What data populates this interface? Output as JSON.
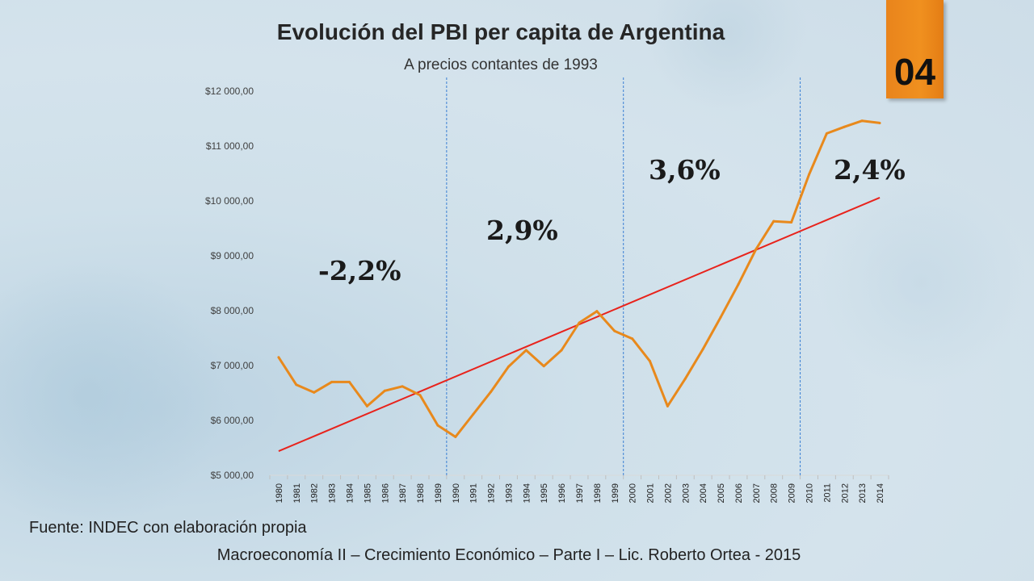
{
  "chart_data": {
    "type": "line",
    "title": "Evolución del PBI per capita de Argentina",
    "subtitle": "A precios contantes de 1993",
    "ylim": [
      5000,
      12000
    ],
    "yticks": [
      5000,
      6000,
      7000,
      8000,
      9000,
      10000,
      11000,
      12000
    ],
    "ytick_labels": [
      "$5 000,00",
      "$6 000,00",
      "$7 000,00",
      "$8 000,00",
      "$9 000,00",
      "$10 000,00",
      "$11 000,00",
      "$12 000,00"
    ],
    "x": [
      "1980",
      "1981",
      "1982",
      "1983",
      "1984",
      "1985",
      "1986",
      "1987",
      "1988",
      "1989",
      "1990",
      "1991",
      "1992",
      "1993",
      "1994",
      "1995",
      "1996",
      "1997",
      "1998",
      "1999",
      "2000",
      "2001",
      "2002",
      "2003",
      "2004",
      "2005",
      "2006",
      "2007",
      "2008",
      "2009",
      "2010",
      "2011",
      "2012",
      "2013",
      "2014"
    ],
    "series": [
      {
        "name": "PBI per capita",
        "color": "#e8891c",
        "values": [
          7150,
          6650,
          6510,
          6700,
          6700,
          6260,
          6540,
          6620,
          6460,
          5910,
          5700,
          6110,
          6520,
          6980,
          7280,
          6990,
          7280,
          7780,
          7990,
          7630,
          7490,
          7080,
          6260,
          6760,
          7300,
          7880,
          8480,
          9120,
          9630,
          9610,
          10480,
          11230,
          11350,
          11460,
          11420
        ]
      },
      {
        "name": "Tendencia",
        "color": "#e8231c",
        "values_start_end": [
          5440,
          10060
        ]
      }
    ],
    "dividers": [
      "1990",
      "2000",
      "2010"
    ],
    "period_growth": [
      {
        "label": "-2,2%",
        "period": "1980-1990"
      },
      {
        "label": "2,9%",
        "period": "1990-2000"
      },
      {
        "label": "3,6%",
        "period": "2000-2010"
      },
      {
        "label": "2,4%",
        "period": "2010-2014"
      }
    ]
  },
  "badge": {
    "label": "04",
    "color": "#f0901f"
  },
  "source": "Fuente: INDEC con elaboración propia",
  "footer": "Macroeconomía II – Crecimiento Económico – Parte I – Lic. Roberto Ortea - 2015"
}
